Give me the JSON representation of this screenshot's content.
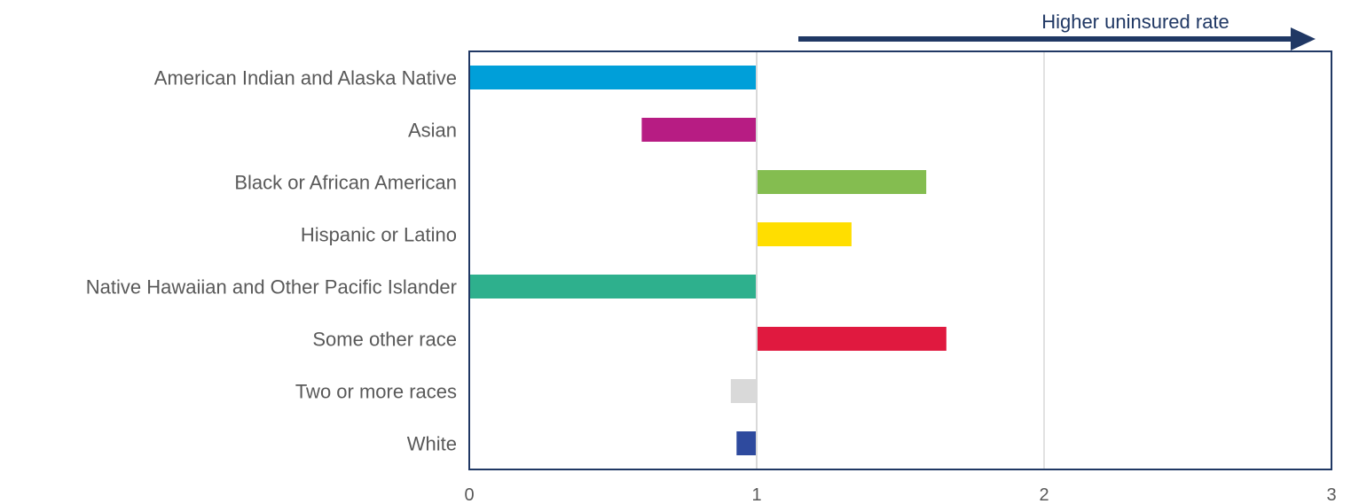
{
  "chart_data": {
    "type": "bar",
    "orientation": "horizontal",
    "baseline": 1,
    "categories": [
      "American Indian and Alaska Native",
      "Asian",
      "Black or African American",
      "Hispanic or Latino",
      "Native Hawaiian and Other Pacific Islander",
      "Some other race",
      "Two or more races",
      "White"
    ],
    "values": [
      0.0,
      0.6,
      1.59,
      1.33,
      0.0,
      1.66,
      0.91,
      0.93
    ],
    "colors": [
      "#009fd9",
      "#b71c83",
      "#84bd50",
      "#ffde00",
      "#2eb08d",
      "#e0193f",
      "#d9d9d9",
      "#2e4a9e"
    ],
    "xlim": [
      0,
      3
    ],
    "xticks": [
      "0",
      "1",
      "2",
      "3"
    ],
    "grid": "vertical",
    "xlabel": "",
    "ylabel": "",
    "annotation": {
      "text": "Higher uninsured rate",
      "color": "#203864",
      "arrow": "right"
    },
    "frame_color": "#203864",
    "grid_color": "#d9d9d9"
  }
}
